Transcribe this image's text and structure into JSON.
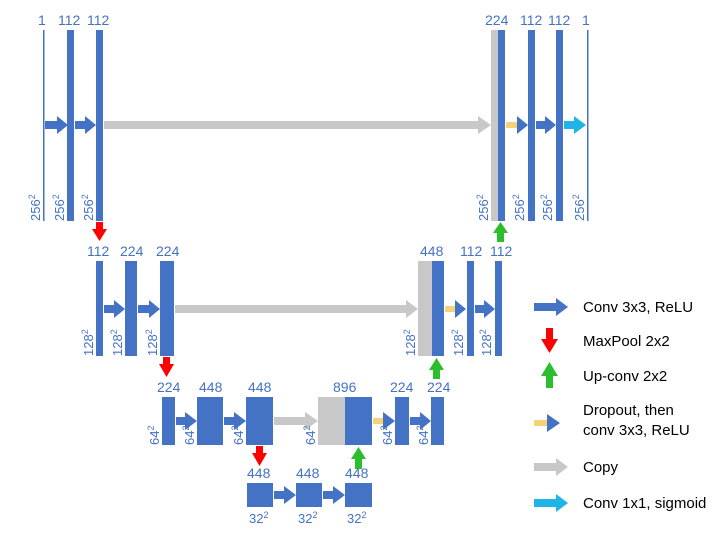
{
  "colors": {
    "block": "#4472C4",
    "copy": "#C8C8C8",
    "maxpool": "#FF0000",
    "upconv": "#2DBE2D",
    "dropout": "#F5D27A",
    "sigmoid": "#1EB4E6",
    "text": "#4472C4"
  },
  "level1": {
    "channels": [
      "1",
      "112",
      "112",
      "224",
      "112",
      "112",
      "1"
    ],
    "sizes": [
      "256",
      "256",
      "256",
      "256",
      "256",
      "256",
      "256"
    ]
  },
  "level2": {
    "channels": [
      "112",
      "224",
      "224",
      "448",
      "112",
      "112"
    ],
    "sizes": [
      "128",
      "128",
      "128",
      "128",
      "128",
      "128"
    ]
  },
  "level3": {
    "channels": [
      "224",
      "448",
      "448",
      "896",
      "224",
      "224"
    ],
    "sizes": [
      "64",
      "64",
      "64",
      "64",
      "64",
      "64"
    ]
  },
  "level4": {
    "channels": [
      "448",
      "448",
      "448"
    ],
    "sizes": [
      "32",
      "32",
      "32"
    ]
  },
  "superscript": "2",
  "legend": [
    {
      "icon": "conv-arrow-icon",
      "label": "Conv 3x3, ReLU"
    },
    {
      "icon": "maxpool-arrow-icon",
      "label": "MaxPool 2x2"
    },
    {
      "icon": "upconv-arrow-icon",
      "label": "Up-conv 2x2"
    },
    {
      "icon": "dropout-arrow-icon",
      "label_line1": "Dropout, then",
      "label_line2": "conv 3x3, ReLU"
    },
    {
      "icon": "copy-arrow-icon",
      "label": "Copy"
    },
    {
      "icon": "sigmoid-arrow-icon",
      "label": "Conv 1x1, sigmoid"
    }
  ]
}
